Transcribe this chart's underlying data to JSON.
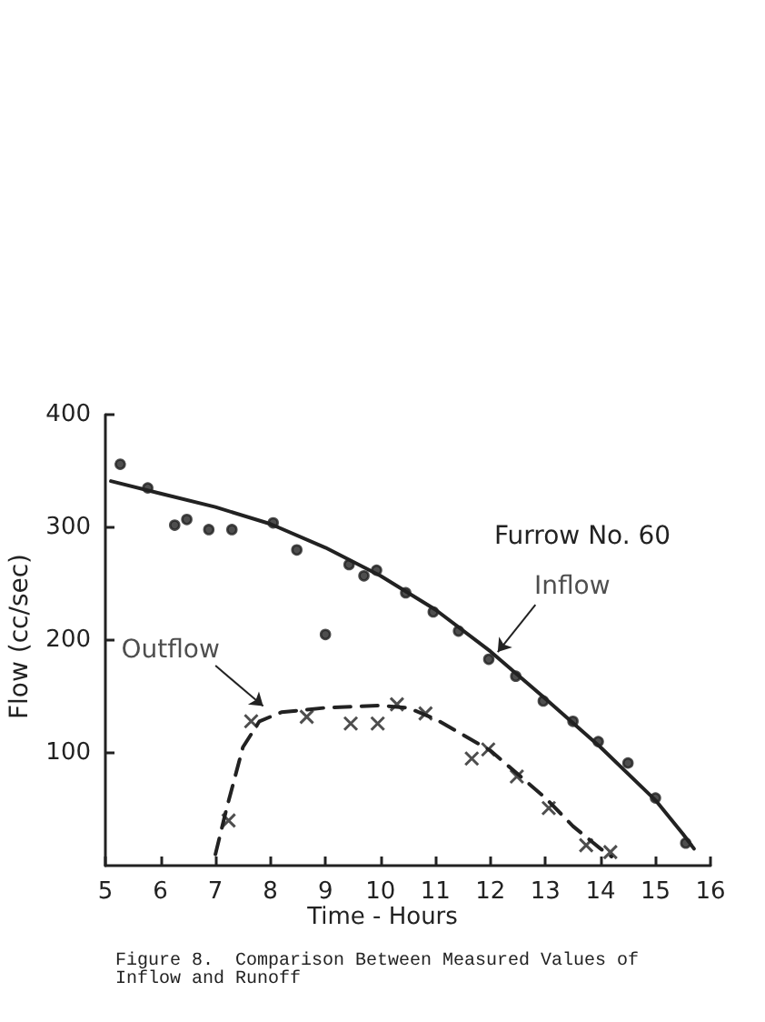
{
  "chart_data": {
    "type": "scatter",
    "xlabel": "Time - Hours",
    "ylabel": "Flow (cc/sec)",
    "xlim": [
      5,
      16
    ],
    "ylim": [
      0,
      400
    ],
    "xticks": [
      5,
      6,
      7,
      8,
      9,
      10,
      11,
      12,
      13,
      14,
      15,
      16
    ],
    "yticks": [
      100,
      200,
      300,
      400
    ],
    "grid": false,
    "series": [
      {
        "marker": "circle",
        "color": "#222222",
        "x": [
          5.27,
          5.77,
          6.26,
          6.48,
          6.88,
          7.3,
          8.05,
          8.48,
          9.0,
          9.43,
          9.7,
          9.93,
          10.46,
          10.96,
          11.42,
          11.97,
          12.46,
          12.96,
          13.5,
          13.96,
          14.5,
          15.0,
          15.55
        ],
        "values": [
          356,
          335,
          302,
          307,
          298,
          298,
          304,
          280,
          205,
          267,
          257,
          262,
          242,
          225,
          208,
          183,
          168,
          146,
          128,
          110,
          91,
          60,
          20
        ]
      },
      {
        "marker": "cross",
        "color": "#222222",
        "x": [
          7.24,
          7.65,
          8.66,
          9.46,
          9.95,
          10.3,
          10.82,
          11.66,
          11.96,
          12.48,
          13.06,
          13.74,
          14.18
        ],
        "values": [
          40,
          128,
          132,
          126,
          126,
          143,
          135,
          95,
          103,
          79,
          51,
          18,
          12
        ]
      },
      {
        "type": "line",
        "marker": "none",
        "line_style": "solid",
        "color": "#222222",
        "x": [
          5.1,
          6,
          7,
          8,
          9,
          10,
          11,
          12,
          13,
          14,
          15,
          15.5,
          15.7
        ],
        "values": [
          341,
          330,
          318,
          303,
          282,
          257,
          227,
          190,
          148,
          105,
          58,
          28,
          15
        ]
      },
      {
        "type": "line",
        "marker": "none",
        "line_style": "dashed",
        "color": "#222222",
        "x": [
          7.0,
          7.2,
          7.5,
          7.8,
          8.2,
          9,
          10,
          10.5,
          11,
          12,
          13,
          13.5,
          14,
          14.2
        ],
        "values": [
          10,
          50,
          105,
          128,
          136,
          140,
          142,
          140,
          130,
          102,
          60,
          35,
          15,
          8
        ]
      }
    ],
    "annotations": [
      "Furrow No. 60",
      {
        "text": "Inflow",
        "x": 12,
        "y": 183
      },
      {
        "text": "Outflow",
        "x": 8,
        "y": 135
      },
      "Figure 8.  Comparison Between Measured Values of Inflow and Runoff"
    ]
  }
}
